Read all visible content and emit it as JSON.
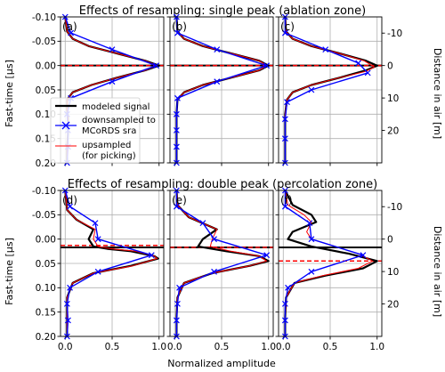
{
  "figure": {
    "title_top": "Effects of resampling: single peak (ablation zone)",
    "title_bottom": "Effects of resampling: double peak (percolation zone)",
    "xlabel": "Normalized amplitude",
    "ylabel_left": "Fast-time [μs]",
    "ylabel_right": "Distance in air [m]",
    "x_ticks": [
      "0.0",
      "0.5",
      "1.0"
    ],
    "y_ticks": [
      "-0.10",
      "-0.05",
      "0.00",
      "0.05",
      "0.10",
      "0.15",
      "0.20"
    ],
    "y2_ticks": [
      "-10",
      "0",
      "10",
      "20"
    ],
    "legend": {
      "modeled": "modeled signal",
      "down_line1": "downsampled to",
      "down_line2": "MCoRDS sra",
      "up_line1": "upsampled",
      "up_line2": "(for picking)"
    },
    "colors": {
      "modeled": "#000000",
      "downsampled": "#0000ff",
      "upsampled": "#ff0000"
    }
  },
  "chart_data": [
    {
      "panel": "(a)",
      "type": "line",
      "xlim": [
        -0.05,
        1.05
      ],
      "ylim": [
        0.2,
        -0.1
      ],
      "y2lim": [
        30,
        -15
      ],
      "series": [
        {
          "name": "modeled signal",
          "x": [
            0.0,
            0.02,
            0.08,
            0.25,
            0.55,
            0.85,
            1.0,
            0.85,
            0.55,
            0.28,
            0.08,
            0.02,
            0.02,
            0.03,
            0.03,
            0.02,
            0.02
          ],
          "y": [
            -0.1,
            -0.07,
            -0.055,
            -0.04,
            -0.025,
            -0.01,
            0.0,
            0.01,
            0.025,
            0.04,
            0.055,
            0.07,
            0.09,
            0.11,
            0.14,
            0.17,
            0.2
          ]
        },
        {
          "name": "downsampled to MCoRDS sra",
          "x": [
            0.0,
            0.06,
            0.5,
            0.97,
            0.5,
            0.06,
            0.02,
            0.03,
            0.03,
            0.02
          ],
          "y": [
            -0.1,
            -0.067,
            -0.033,
            0.0,
            0.033,
            0.067,
            0.1,
            0.133,
            0.167,
            0.2
          ]
        },
        {
          "name": "upsampled (for picking)",
          "x": [
            0.0,
            0.02,
            0.08,
            0.25,
            0.55,
            0.85,
            0.98,
            0.85,
            0.55,
            0.28,
            0.08,
            0.02,
            0.02,
            0.03,
            0.03,
            0.02,
            0.02
          ],
          "y": [
            -0.1,
            -0.07,
            -0.055,
            -0.04,
            -0.025,
            -0.01,
            0.0,
            0.01,
            0.025,
            0.04,
            0.055,
            0.07,
            0.09,
            0.11,
            0.14,
            0.17,
            0.2
          ]
        }
      ],
      "pick_black": 0.0,
      "pick_red": 0.0
    },
    {
      "panel": "(b)",
      "type": "line",
      "xlim": [
        -0.05,
        1.05
      ],
      "ylim": [
        0.2,
        -0.1
      ],
      "y2lim": [
        30,
        -15
      ],
      "series": [
        {
          "name": "modeled signal",
          "x": [
            0.02,
            0.03,
            0.1,
            0.3,
            0.6,
            0.9,
            1.0,
            0.9,
            0.6,
            0.3,
            0.1,
            0.03,
            0.02,
            0.02,
            0.02
          ],
          "y": [
            -0.1,
            -0.07,
            -0.055,
            -0.04,
            -0.025,
            -0.01,
            0.0,
            0.01,
            0.025,
            0.04,
            0.055,
            0.07,
            0.1,
            0.15,
            0.2
          ]
        },
        {
          "name": "downsampled to MCoRDS sra",
          "x": [
            0.02,
            0.03,
            0.45,
            0.98,
            0.45,
            0.03,
            0.02,
            0.02,
            0.02,
            0.02
          ],
          "y": [
            -0.1,
            -0.067,
            -0.033,
            0.0,
            0.033,
            0.067,
            0.1,
            0.133,
            0.167,
            0.2
          ]
        },
        {
          "name": "upsampled (for picking)",
          "x": [
            0.02,
            0.03,
            0.1,
            0.3,
            0.6,
            0.9,
            0.98,
            0.9,
            0.6,
            0.3,
            0.1,
            0.03,
            0.02,
            0.02,
            0.02
          ],
          "y": [
            -0.1,
            -0.07,
            -0.055,
            -0.04,
            -0.025,
            -0.01,
            0.0,
            0.01,
            0.025,
            0.04,
            0.055,
            0.07,
            0.1,
            0.15,
            0.2
          ]
        }
      ],
      "pick_black": 0.0,
      "pick_red": 0.0
    },
    {
      "panel": "(c)",
      "type": "line",
      "xlim": [
        -0.05,
        1.05
      ],
      "ylim": [
        0.2,
        -0.1
      ],
      "y2lim": [
        30,
        -15
      ],
      "series": [
        {
          "name": "modeled signal",
          "x": [
            0.02,
            0.03,
            0.1,
            0.3,
            0.6,
            0.88,
            1.0,
            0.88,
            0.6,
            0.3,
            0.1,
            0.04,
            0.02,
            0.02,
            0.02
          ],
          "y": [
            -0.1,
            -0.07,
            -0.055,
            -0.04,
            -0.025,
            -0.01,
            0.0,
            0.01,
            0.025,
            0.04,
            0.055,
            0.07,
            0.1,
            0.15,
            0.2
          ]
        },
        {
          "name": "downsampled to MCoRDS sra",
          "x": [
            0.02,
            0.02,
            0.45,
            0.8,
            0.9,
            0.3,
            0.04,
            0.02,
            0.02,
            0.02
          ],
          "y": [
            -0.1,
            -0.067,
            -0.033,
            -0.005,
            0.015,
            0.05,
            0.075,
            0.11,
            0.15,
            0.2
          ]
        },
        {
          "name": "upsampled (for picking)",
          "x": [
            0.02,
            0.03,
            0.1,
            0.3,
            0.6,
            0.86,
            0.97,
            0.88,
            0.6,
            0.3,
            0.1,
            0.04,
            0.02,
            0.02,
            0.02
          ],
          "y": [
            -0.1,
            -0.07,
            -0.055,
            -0.04,
            -0.025,
            -0.01,
            0.003,
            0.012,
            0.025,
            0.04,
            0.055,
            0.07,
            0.1,
            0.15,
            0.2
          ]
        }
      ],
      "pick_black": 0.0,
      "pick_red": 0.0
    },
    {
      "panel": "(d)",
      "type": "line",
      "xlim": [
        -0.05,
        1.05
      ],
      "ylim": [
        0.2,
        -0.1
      ],
      "y2lim": [
        30,
        -15
      ],
      "series": [
        {
          "name": "modeled signal",
          "x": [
            0.0,
            0.02,
            0.12,
            0.3,
            0.25,
            0.3,
            0.45,
            0.7,
            0.95,
            0.99,
            0.7,
            0.3,
            0.08,
            0.02,
            0.02,
            0.02
          ],
          "y": [
            -0.1,
            -0.06,
            -0.04,
            -0.02,
            0.0,
            0.015,
            0.02,
            0.025,
            0.035,
            0.04,
            0.055,
            0.07,
            0.09,
            0.12,
            0.16,
            0.2
          ]
        },
        {
          "name": "downsampled to MCoRDS sra",
          "x": [
            0.0,
            0.05,
            0.32,
            0.35,
            0.92,
            0.35,
            0.05,
            0.02,
            0.03,
            0.02
          ],
          "y": [
            -0.1,
            -0.067,
            -0.033,
            0.0,
            0.033,
            0.067,
            0.1,
            0.133,
            0.167,
            0.2
          ]
        },
        {
          "name": "upsampled (for picking)",
          "x": [
            0.0,
            0.02,
            0.12,
            0.32,
            0.3,
            0.35,
            0.5,
            0.75,
            0.95,
            0.98,
            0.72,
            0.3,
            0.08,
            0.02,
            0.02,
            0.02
          ],
          "y": [
            -0.1,
            -0.06,
            -0.04,
            -0.02,
            0.0,
            0.015,
            0.02,
            0.025,
            0.035,
            0.04,
            0.055,
            0.07,
            0.09,
            0.12,
            0.16,
            0.2
          ]
        }
      ],
      "pick_black": 0.017,
      "pick_red": 0.013
    },
    {
      "panel": "(e)",
      "type": "line",
      "xlim": [
        -0.05,
        1.05
      ],
      "ylim": [
        0.2,
        -0.1
      ],
      "y2lim": [
        30,
        -15
      ],
      "series": [
        {
          "name": "modeled signal",
          "x": [
            0.02,
            0.03,
            0.15,
            0.45,
            0.3,
            0.25,
            0.55,
            0.9,
            1.0,
            0.8,
            0.4,
            0.1,
            0.03,
            0.02,
            0.02
          ],
          "y": [
            -0.1,
            -0.07,
            -0.045,
            -0.02,
            0.0,
            0.015,
            0.025,
            0.035,
            0.045,
            0.055,
            0.07,
            0.09,
            0.12,
            0.16,
            0.2
          ]
        },
        {
          "name": "downsampled to MCoRDS sra",
          "x": [
            0.02,
            0.02,
            0.3,
            0.42,
            0.98,
            0.42,
            0.05,
            0.03,
            0.02,
            0.02
          ],
          "y": [
            -0.1,
            -0.067,
            -0.033,
            0.0,
            0.033,
            0.067,
            0.1,
            0.133,
            0.167,
            0.2
          ]
        },
        {
          "name": "upsampled (for picking)",
          "x": [
            0.02,
            0.03,
            0.15,
            0.45,
            0.4,
            0.38,
            0.6,
            0.9,
            0.98,
            0.8,
            0.4,
            0.1,
            0.03,
            0.02,
            0.02
          ],
          "y": [
            -0.1,
            -0.07,
            -0.045,
            -0.02,
            0.0,
            0.015,
            0.025,
            0.035,
            0.045,
            0.055,
            0.07,
            0.09,
            0.12,
            0.16,
            0.2
          ]
        }
      ],
      "pick_black": 0.017,
      "pick_red": 0.017
    },
    {
      "panel": "(f)",
      "type": "line",
      "xlim": [
        -0.05,
        1.05
      ],
      "ylim": [
        0.2,
        -0.1
      ],
      "y2lim": [
        30,
        -15
      ],
      "series": [
        {
          "name": "modeled signal",
          "x": [
            0.02,
            0.1,
            0.3,
            0.35,
            0.1,
            0.05,
            0.3,
            0.7,
            1.0,
            0.85,
            0.45,
            0.12,
            0.03,
            0.02,
            0.02
          ],
          "y": [
            -0.1,
            -0.07,
            -0.05,
            -0.035,
            -0.015,
            0.0,
            0.015,
            0.03,
            0.045,
            0.06,
            0.075,
            0.09,
            0.12,
            0.16,
            0.2
          ]
        },
        {
          "name": "downsampled to MCoRDS sra",
          "x": [
            0.02,
            0.02,
            0.28,
            0.3,
            0.85,
            0.3,
            0.05,
            0.02,
            0.02,
            0.02
          ],
          "y": [
            -0.1,
            -0.067,
            -0.033,
            0.0,
            0.033,
            0.067,
            0.1,
            0.133,
            0.167,
            0.2
          ]
        },
        {
          "name": "upsampled (for picking)",
          "x": [
            0.02,
            0.05,
            0.22,
            0.3,
            0.25,
            0.3,
            0.55,
            0.8,
            0.95,
            0.8,
            0.42,
            0.12,
            0.03,
            0.02,
            0.02
          ],
          "y": [
            -0.1,
            -0.07,
            -0.05,
            -0.035,
            -0.015,
            0.0,
            0.015,
            0.03,
            0.045,
            0.06,
            0.075,
            0.09,
            0.12,
            0.16,
            0.2
          ]
        }
      ],
      "pick_black": 0.017,
      "pick_red": 0.045
    }
  ]
}
